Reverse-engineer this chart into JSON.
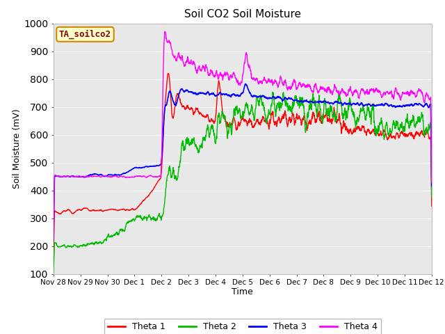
{
  "title": "Soil CO2 Soil Moisture",
  "xlabel": "Time",
  "ylabel": "Soil Moisture (mV)",
  "ylim": [
    100,
    1000
  ],
  "annotation": "TA_soilco2",
  "fig_bg_color": "#ffffff",
  "plot_bg_color": "#e8e8e8",
  "grid_color": "#ffffff",
  "colors": {
    "theta1": "#ff0000",
    "theta2": "#00bb00",
    "theta3": "#0000ff",
    "theta4": "#ff00ff"
  },
  "legend_labels": [
    "Theta 1",
    "Theta 2",
    "Theta 3",
    "Theta 4"
  ],
  "xtick_labels": [
    "Nov 28",
    "Nov 29",
    "Nov 30",
    "Dec 1",
    "Dec 2",
    "Dec 3",
    "Dec 4",
    "Dec 5",
    "Dec 6",
    "Dec 7",
    "Dec 8",
    "Dec 9",
    "Dec 10",
    "Dec 11",
    "Dec 12"
  ],
  "ytick_values": [
    100,
    200,
    300,
    400,
    500,
    600,
    700,
    800,
    900,
    1000
  ]
}
